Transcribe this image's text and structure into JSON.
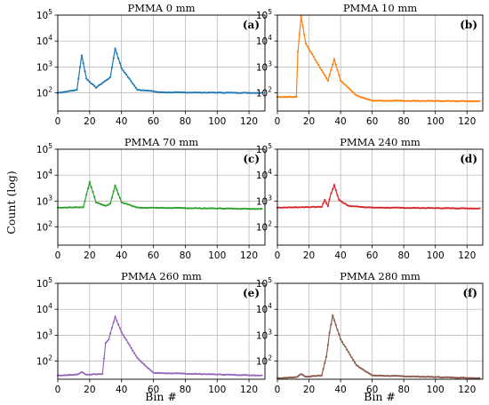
{
  "figure": {
    "ylabel": "Count (log)",
    "xlabel": "Bin #"
  },
  "chart_data": [
    {
      "type": "line",
      "title": "PMMA 0 mm",
      "panel_label": "(a)",
      "color": "#1f77b4",
      "xlim": [
        0,
        130
      ],
      "ylim": [
        20,
        100000
      ],
      "yscale": "log",
      "grid": true,
      "xticks": [
        "0",
        "20",
        "40",
        "60",
        "80",
        "100",
        "120"
      ],
      "yticks": [
        "10^2",
        "10^3",
        "10^4",
        "10^5"
      ],
      "peaks": [
        {
          "bin": 15,
          "count": 2800
        },
        {
          "bin": 36,
          "count": 5200
        }
      ],
      "baseline_count": 100,
      "key_points": {
        "x": [
          0,
          12,
          15,
          18,
          24,
          33,
          36,
          40,
          50,
          56,
          64,
          128
        ],
        "y": [
          100,
          130,
          2800,
          350,
          160,
          400,
          5200,
          900,
          130,
          125,
          105,
          100
        ]
      }
    },
    {
      "type": "line",
      "title": "PMMA 10 mm",
      "panel_label": "(b)",
      "color": "#ff7f0e",
      "xlim": [
        0,
        130
      ],
      "ylim": [
        20,
        100000
      ],
      "yscale": "log",
      "grid": true,
      "xticks": [
        "0",
        "20",
        "40",
        "60",
        "80",
        "100",
        "120"
      ],
      "yticks": [
        "10^2",
        "10^3",
        "10^4",
        "10^5"
      ],
      "peaks": [
        {
          "bin": 15,
          "count": 90000
        },
        {
          "bin": 36,
          "count": 2000
        }
      ],
      "baseline_count": 48,
      "key_points": {
        "x": [
          0,
          12,
          13,
          15,
          18,
          25,
          32,
          36,
          40,
          50,
          60,
          128
        ],
        "y": [
          70,
          70,
          4000,
          90000,
          8000,
          1500,
          300,
          2000,
          300,
          80,
          50,
          48
        ]
      }
    },
    {
      "type": "line",
      "title": "PMMA 70 mm",
      "panel_label": "(c)",
      "color": "#2ca02c",
      "xlim": [
        0,
        130
      ],
      "ylim": [
        20,
        100000
      ],
      "yscale": "log",
      "grid": true,
      "xticks": [
        "0",
        "20",
        "40",
        "60",
        "80",
        "100",
        "120"
      ],
      "yticks": [
        "10^2",
        "10^3",
        "10^4",
        "10^5"
      ],
      "peaks": [
        {
          "bin": 20,
          "count": 5500
        },
        {
          "bin": 36,
          "count": 4000
        }
      ],
      "baseline_count": 500,
      "key_points": {
        "x": [
          0,
          16,
          20,
          24,
          30,
          33,
          36,
          40,
          50,
          128
        ],
        "y": [
          560,
          580,
          5500,
          900,
          650,
          800,
          4000,
          900,
          560,
          500
        ]
      }
    },
    {
      "type": "line",
      "title": "PMMA 240 mm",
      "panel_label": "(d)",
      "color": "#d62728",
      "xlim": [
        0,
        130
      ],
      "ylim": [
        20,
        100000
      ],
      "yscale": "log",
      "grid": true,
      "xticks": [
        "0",
        "20",
        "40",
        "60",
        "80",
        "100",
        "120"
      ],
      "yticks": [
        "10^2",
        "10^3",
        "10^4",
        "10^5"
      ],
      "peaks": [
        {
          "bin": 30,
          "count": 1100
        },
        {
          "bin": 36,
          "count": 4200
        }
      ],
      "baseline_count": 520,
      "key_points": {
        "x": [
          0,
          28,
          30,
          32,
          34,
          36,
          39,
          45,
          60,
          128
        ],
        "y": [
          560,
          600,
          1100,
          650,
          2000,
          4200,
          1100,
          650,
          560,
          520
        ]
      }
    },
    {
      "type": "line",
      "title": "PMMA 260 mm",
      "panel_label": "(e)",
      "color": "#9467bd",
      "xlim": [
        0,
        130
      ],
      "ylim": [
        20,
        100000
      ],
      "yscale": "log",
      "grid": true,
      "xticks": [
        "0",
        "20",
        "40",
        "60",
        "80",
        "100",
        "120"
      ],
      "yticks": [
        "10^2",
        "10^3",
        "10^4",
        "10^5"
      ],
      "peaks": [
        {
          "bin": 15,
          "count": 38
        },
        {
          "bin": 36,
          "count": 5200
        }
      ],
      "baseline_count": 28,
      "key_points": {
        "x": [
          0,
          12,
          15,
          18,
          28,
          30,
          32,
          36,
          40,
          50,
          60,
          128
        ],
        "y": [
          28,
          30,
          38,
          30,
          32,
          500,
          700,
          5200,
          1300,
          130,
          35,
          28
        ]
      }
    },
    {
      "type": "line",
      "title": "PMMA 280 mm",
      "panel_label": "(f)",
      "color": "#8c564b",
      "xlim": [
        0,
        130
      ],
      "ylim": [
        20,
        100000
      ],
      "yscale": "log",
      "grid": true,
      "xticks": [
        "0",
        "20",
        "40",
        "60",
        "80",
        "100",
        "120"
      ],
      "yticks": [
        "10^2",
        "10^3",
        "10^4",
        "10^5"
      ],
      "peaks": [
        {
          "bin": 15,
          "count": 32
        },
        {
          "bin": 35,
          "count": 5800
        }
      ],
      "baseline_count": 22,
      "key_points": {
        "x": [
          0,
          12,
          15,
          18,
          28,
          31,
          33,
          35,
          40,
          50,
          60,
          128
        ],
        "y": [
          22,
          24,
          32,
          25,
          28,
          150,
          1200,
          5800,
          700,
          70,
          28,
          22
        ]
      }
    }
  ]
}
